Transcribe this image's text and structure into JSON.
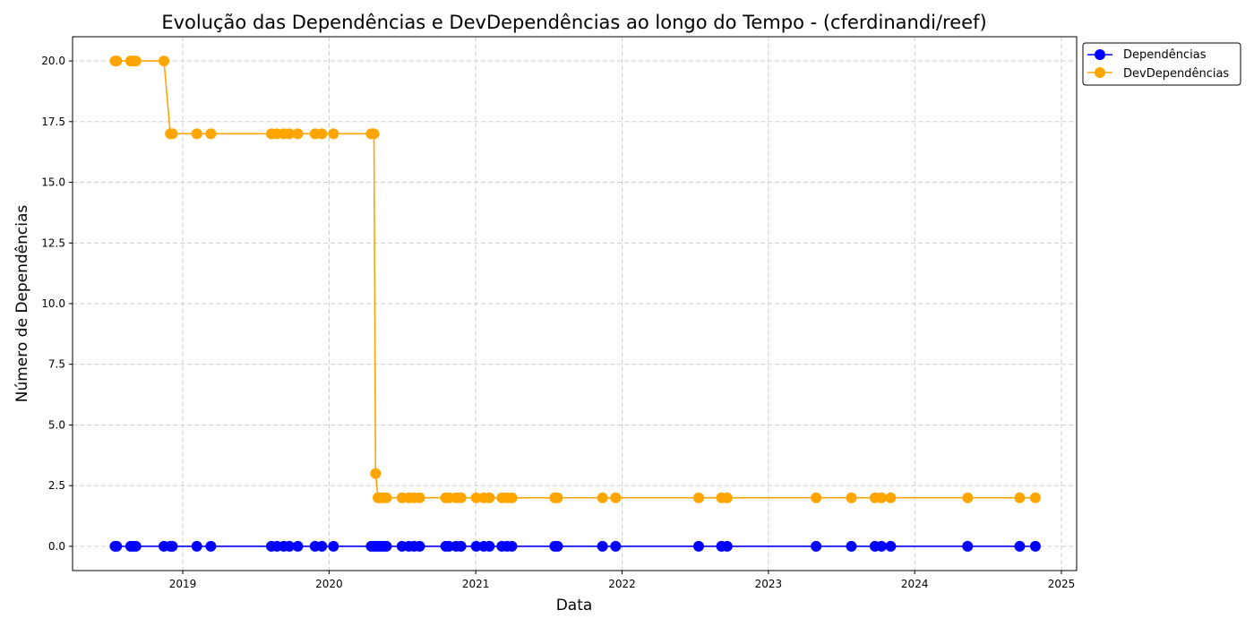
{
  "chart_data": {
    "type": "line",
    "title": "Evolução das Dependências e DevDependências ao longo do Tempo - (cferdinandi/reef)",
    "xlabel": "Data",
    "ylabel": "Número de Dependências",
    "xlim": [
      "2018-04-01",
      "2025-02-08"
    ],
    "ylim": [
      -1,
      21
    ],
    "x_ticks": [
      "2019",
      "2020",
      "2021",
      "2022",
      "2023",
      "2024",
      "2025"
    ],
    "x_tick_dates": [
      "2019-01-01",
      "2020-01-01",
      "2021-01-01",
      "2022-01-01",
      "2023-01-01",
      "2024-01-01",
      "2025-01-01"
    ],
    "y_ticks": [
      0.0,
      2.5,
      5.0,
      7.5,
      10.0,
      12.5,
      15.0,
      17.5,
      20.0
    ],
    "grid": true,
    "legend_position": "outside-top-right",
    "colors": {
      "dependencias": "#0000ff",
      "devdependencias": "#ffa500"
    },
    "series": [
      {
        "name": "Dependências",
        "color": "#0000ff",
        "points": [
          [
            "2018-07-16",
            0
          ],
          [
            "2018-07-20",
            0
          ],
          [
            "2018-08-24",
            0
          ],
          [
            "2018-08-30",
            0
          ],
          [
            "2018-09-06",
            0
          ],
          [
            "2018-11-15",
            0
          ],
          [
            "2018-12-01",
            0
          ],
          [
            "2018-12-06",
            0
          ],
          [
            "2019-02-05",
            0
          ],
          [
            "2019-03-12",
            0
          ],
          [
            "2019-08-10",
            0
          ],
          [
            "2019-08-24",
            0
          ],
          [
            "2019-09-10",
            0
          ],
          [
            "2019-09-24",
            0
          ],
          [
            "2019-10-15",
            0
          ],
          [
            "2019-11-27",
            0
          ],
          [
            "2019-12-14",
            0
          ],
          [
            "2020-01-12",
            0
          ],
          [
            "2020-04-15",
            0
          ],
          [
            "2020-04-22",
            0
          ],
          [
            "2020-04-26",
            0
          ],
          [
            "2020-05-02",
            0
          ],
          [
            "2020-05-09",
            0
          ],
          [
            "2020-05-16",
            0
          ],
          [
            "2020-05-23",
            0
          ],
          [
            "2020-07-01",
            0
          ],
          [
            "2020-07-18",
            0
          ],
          [
            "2020-07-31",
            0
          ],
          [
            "2020-08-14",
            0
          ],
          [
            "2020-10-18",
            0
          ],
          [
            "2020-10-26",
            0
          ],
          [
            "2020-11-13",
            0
          ],
          [
            "2020-11-25",
            0
          ],
          [
            "2021-01-02",
            0
          ],
          [
            "2021-01-21",
            0
          ],
          [
            "2021-02-04",
            0
          ],
          [
            "2021-03-07",
            0
          ],
          [
            "2021-03-20",
            0
          ],
          [
            "2021-04-01",
            0
          ],
          [
            "2021-07-17",
            0
          ],
          [
            "2021-07-24",
            0
          ],
          [
            "2021-11-13",
            0
          ],
          [
            "2021-12-16",
            0
          ],
          [
            "2022-07-11",
            0
          ],
          [
            "2022-09-06",
            0
          ],
          [
            "2022-09-20",
            0
          ],
          [
            "2023-04-30",
            0
          ],
          [
            "2023-07-27",
            0
          ],
          [
            "2023-09-24",
            0
          ],
          [
            "2023-10-10",
            0
          ],
          [
            "2023-11-02",
            0
          ],
          [
            "2024-05-12",
            0
          ],
          [
            "2024-09-19",
            0
          ],
          [
            "2024-10-28",
            0
          ]
        ]
      },
      {
        "name": "DevDependências",
        "color": "#ffa500",
        "points": [
          [
            "2018-07-16",
            20
          ],
          [
            "2018-07-20",
            20
          ],
          [
            "2018-08-24",
            20
          ],
          [
            "2018-08-30",
            20
          ],
          [
            "2018-09-06",
            20
          ],
          [
            "2018-11-15",
            20
          ],
          [
            "2018-12-01",
            17
          ],
          [
            "2018-12-06",
            17
          ],
          [
            "2019-02-05",
            17
          ],
          [
            "2019-03-12",
            17
          ],
          [
            "2019-08-10",
            17
          ],
          [
            "2019-08-24",
            17
          ],
          [
            "2019-09-10",
            17
          ],
          [
            "2019-09-24",
            17
          ],
          [
            "2019-10-15",
            17
          ],
          [
            "2019-11-27",
            17
          ],
          [
            "2019-12-14",
            17
          ],
          [
            "2020-01-12",
            17
          ],
          [
            "2020-04-15",
            17
          ],
          [
            "2020-04-22",
            17
          ],
          [
            "2020-04-26",
            3
          ],
          [
            "2020-05-02",
            2
          ],
          [
            "2020-05-09",
            2
          ],
          [
            "2020-05-16",
            2
          ],
          [
            "2020-05-23",
            2
          ],
          [
            "2020-07-01",
            2
          ],
          [
            "2020-07-18",
            2
          ],
          [
            "2020-07-31",
            2
          ],
          [
            "2020-08-14",
            2
          ],
          [
            "2020-10-18",
            2
          ],
          [
            "2020-10-26",
            2
          ],
          [
            "2020-11-13",
            2
          ],
          [
            "2020-11-25",
            2
          ],
          [
            "2021-01-02",
            2
          ],
          [
            "2021-01-21",
            2
          ],
          [
            "2021-02-04",
            2
          ],
          [
            "2021-03-07",
            2
          ],
          [
            "2021-03-20",
            2
          ],
          [
            "2021-04-01",
            2
          ],
          [
            "2021-07-17",
            2
          ],
          [
            "2021-07-24",
            2
          ],
          [
            "2021-11-13",
            2
          ],
          [
            "2021-12-16",
            2
          ],
          [
            "2022-07-11",
            2
          ],
          [
            "2022-09-06",
            2
          ],
          [
            "2022-09-20",
            2
          ],
          [
            "2023-04-30",
            2
          ],
          [
            "2023-07-27",
            2
          ],
          [
            "2023-09-24",
            2
          ],
          [
            "2023-10-10",
            2
          ],
          [
            "2023-11-02",
            2
          ],
          [
            "2024-05-12",
            2
          ],
          [
            "2024-09-19",
            2
          ],
          [
            "2024-10-28",
            2
          ]
        ]
      }
    ]
  }
}
